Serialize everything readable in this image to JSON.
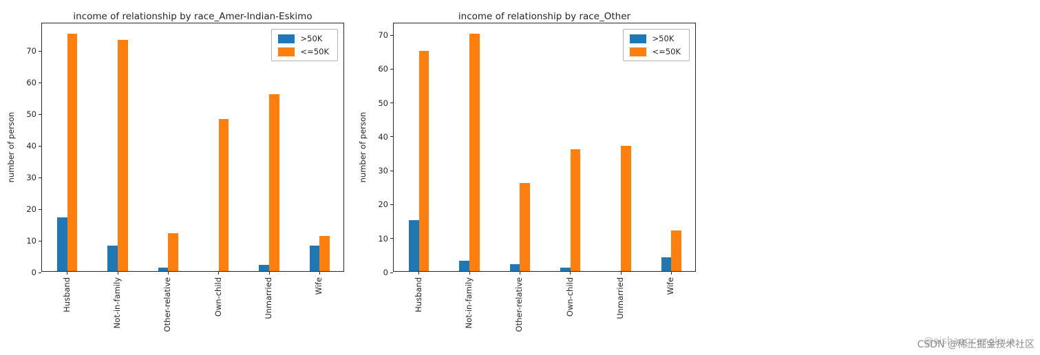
{
  "watermark": {
    "text_primary": "CSDN @稀土掘金技术社区",
    "text_secondary": "@aishangcengloua"
  },
  "chart_data": [
    {
      "type": "bar",
      "title": "income of relationship by race_Amer-Indian-Eskimo",
      "xlabel": "",
      "ylabel": "number of person",
      "categories": [
        "Husband",
        "Not-in-family",
        "Other-relative",
        "Own-child",
        "Unmarried",
        "Wife"
      ],
      "series": [
        {
          "name": ">50K",
          "color": "#1f77b4",
          "values": [
            17,
            8,
            1,
            0,
            2,
            8
          ]
        },
        {
          "name": "<=50K",
          "color": "#ff7f0e",
          "values": [
            75,
            73,
            12,
            48,
            56,
            11
          ]
        }
      ],
      "ylim": [
        0,
        78.75
      ],
      "yticks": [
        0,
        10,
        20,
        30,
        40,
        50,
        60,
        70
      ],
      "grid": false,
      "legend_position": "upper right",
      "xtick_rotation": 90
    },
    {
      "type": "bar",
      "title": "income of relationship by race_Other",
      "xlabel": "",
      "ylabel": "number of person",
      "categories": [
        "Husband",
        "Not-in-family",
        "Other-relative",
        "Own-child",
        "Unmarried",
        "Wife"
      ],
      "series": [
        {
          "name": ">50K",
          "color": "#1f77b4",
          "values": [
            15,
            3,
            2,
            1,
            0,
            4
          ]
        },
        {
          "name": "<=50K",
          "color": "#ff7f0e",
          "values": [
            65,
            70,
            26,
            36,
            37,
            12
          ]
        }
      ],
      "ylim": [
        0,
        73.5
      ],
      "yticks": [
        0,
        10,
        20,
        30,
        40,
        50,
        60,
        70
      ],
      "grid": false,
      "legend_position": "upper right",
      "xtick_rotation": 90
    }
  ]
}
